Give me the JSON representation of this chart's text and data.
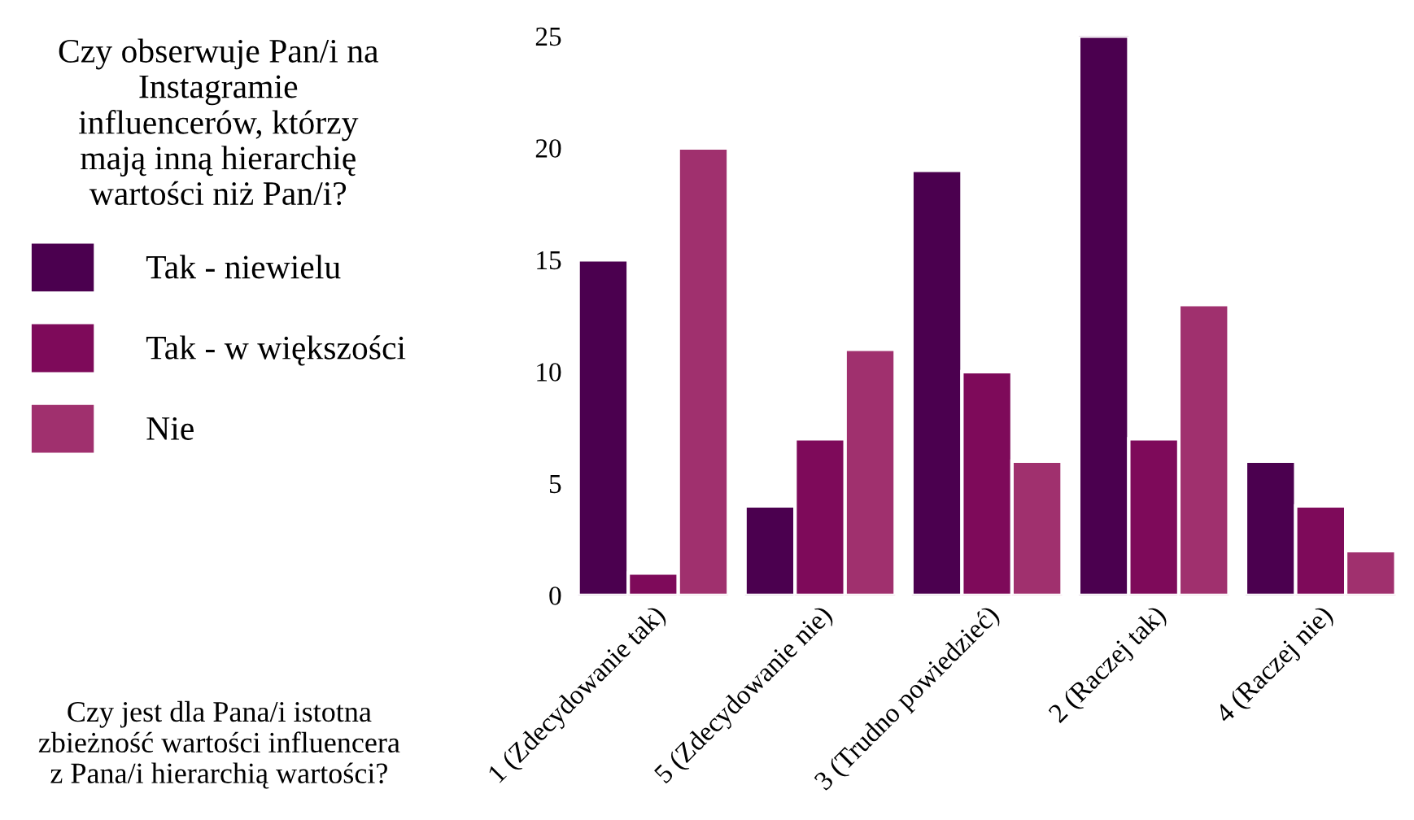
{
  "chart_data": {
    "type": "bar",
    "legend_title": "Czy obserwuje Pan/i na\nInstagramie\ninfluencerów, którzy\nmają inną hierarchię\nwartości niż Pan/i?",
    "annotations": [
      "Czy jest dla Pana/i istotna\nzbieżność wartości influencera\nz Pana/i hierarchią wartości?"
    ],
    "categories": [
      "1 (Zdecydowanie tak)",
      "5 (Zdecydowanie nie)",
      "3 (Trudno powiedzieć)",
      "2 (Raczej tak)",
      "4 (Raczej nie)"
    ],
    "series": [
      {
        "name": "Tak - niewielu",
        "color": "#4b004f",
        "values": [
          15,
          4,
          19,
          25,
          6
        ]
      },
      {
        "name": "Tak - w większości",
        "color": "#7e0a5a",
        "values": [
          1,
          7,
          10,
          7,
          4
        ]
      },
      {
        "name": "Nie",
        "color": "#a0306e",
        "values": [
          20,
          11,
          6,
          13,
          2
        ]
      }
    ],
    "ylim": [
      0,
      25
    ],
    "yticks": [
      0,
      5,
      10,
      15,
      20,
      25
    ],
    "grid": false,
    "legend": "left"
  }
}
